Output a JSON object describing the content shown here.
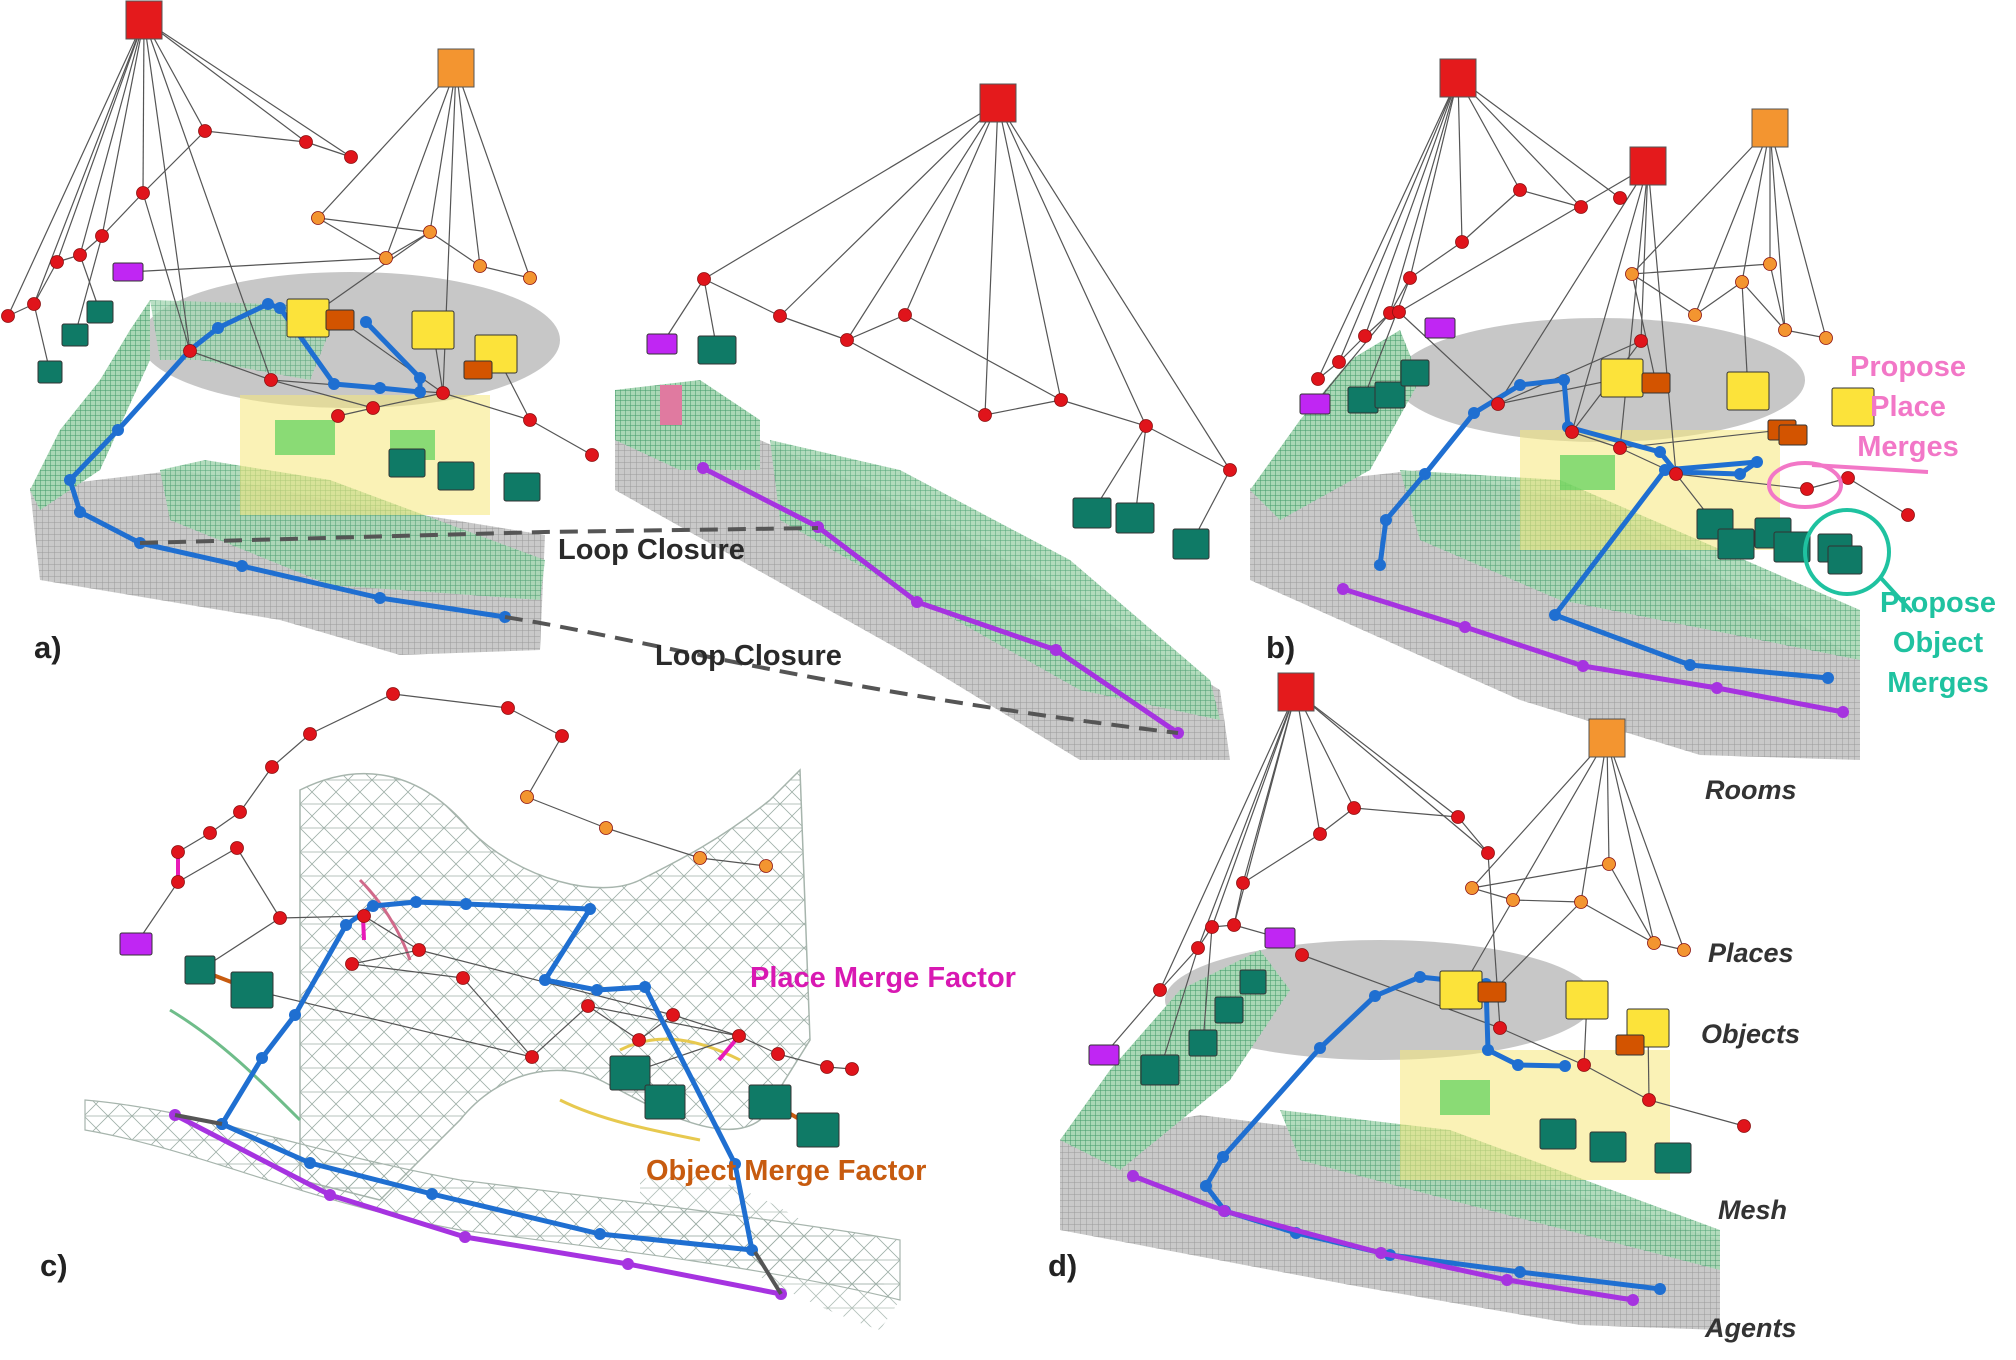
{
  "panels": {
    "a": "a)",
    "b": "b)",
    "c": "c)",
    "d": "d)"
  },
  "annotations": {
    "loop_closure_top": "Loop Closure",
    "loop_closure_mid": "Loop Closure",
    "propose_place_merges": [
      "Propose",
      "Place",
      "Merges"
    ],
    "propose_object_merges": [
      "Propose",
      "Object",
      "Merges"
    ],
    "place_merge_factor": "Place Merge Factor",
    "object_merge_factor": "Object Merge Factor"
  },
  "layers": {
    "rooms": "Rooms",
    "places": "Places",
    "objects": "Objects",
    "mesh": "Mesh",
    "agents": "Agents"
  },
  "colors": {
    "room_red": "#e41a1c",
    "room_orange": "#f39530",
    "place_red": "#e0141b",
    "place_orange": "#f39530",
    "object_teal": "#0f7a66",
    "object_yellow": "#fce33a",
    "object_darkorange": "#d35400",
    "object_purple": "#c026f3",
    "agent_blue": "#1f6fd1",
    "agent_purple": "#a633e0",
    "place_merge": "#e81ab8",
    "object_merge": "#c75b0f",
    "propose_place": "#f277c7",
    "propose_object": "#1fc2a0"
  }
}
